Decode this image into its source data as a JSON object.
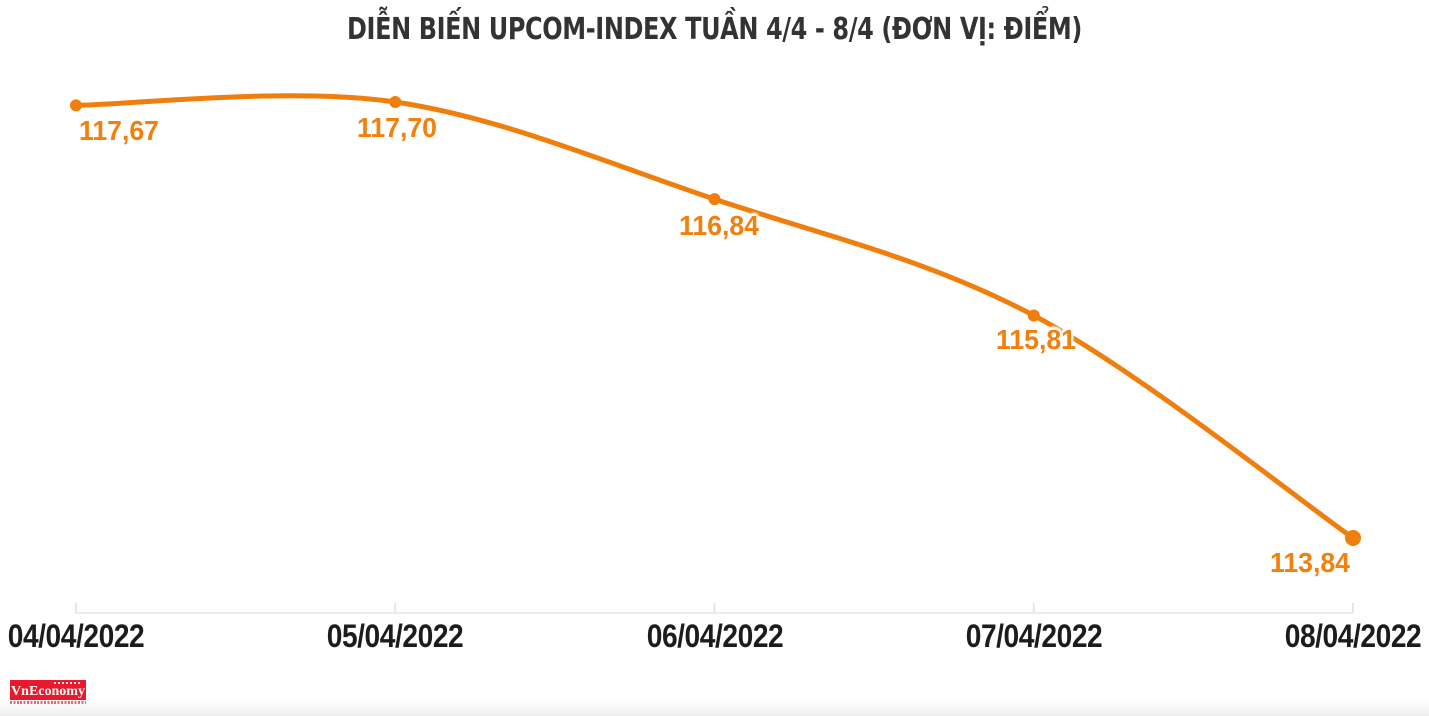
{
  "chart_data": {
    "type": "line",
    "title": "DIỄN BIẾN UPCOM-INDEX TUẦN 4/4 - 8/4 (ĐƠN VỊ: ĐIỂM)",
    "categories": [
      "04/04/2022",
      "05/04/2022",
      "06/04/2022",
      "07/04/2022",
      "08/04/2022"
    ],
    "series": [
      {
        "name": "UPCOM-Index",
        "values": [
          117.67,
          117.7,
          116.84,
          115.81,
          113.84
        ]
      }
    ],
    "point_labels": [
      "117,67",
      "117,70",
      "116,84",
      "115,81",
      "113,84"
    ],
    "xlabel": "",
    "ylabel": "",
    "ylim": [
      113.2,
      118.1
    ],
    "grid": false,
    "legend": "none",
    "line_color": "#EF7E0D",
    "marker_color": "#EF7E0D",
    "point_label_color": "#F1800D",
    "axis_line_color": "#ECECEC",
    "tick_color": "#E6E6E6",
    "x_label_color": "#1C1C1C",
    "title_color": "#333333"
  },
  "footer": {
    "logo_text": "VnEconomy",
    "logo_bg_color": "#E8192C",
    "logo_text_color": "#FFFFFF"
  }
}
